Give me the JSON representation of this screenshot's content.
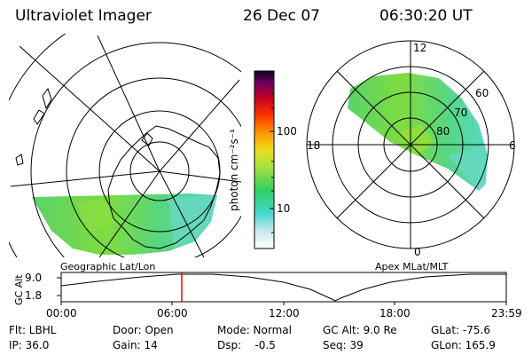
{
  "header": {
    "instrument": "Ultraviolet Imager",
    "date": "26 Dec 07",
    "time": "06:30:20 UT"
  },
  "geo_map": {
    "label": "Geographic Lat/Lon"
  },
  "apex_map": {
    "label": "Apex MLat/MLT",
    "mlt_labels": {
      "top": "12",
      "left": "18",
      "right": "6",
      "bottom": "0"
    },
    "lat_labels": [
      "60",
      "70",
      "80"
    ]
  },
  "colorbar": {
    "unit_label": "photon cm⁻²s⁻¹",
    "ticks": [
      "100",
      "10"
    ],
    "colors": [
      "#ffffff",
      "#c8e8ec",
      "#40d8d0",
      "#30d060",
      "#a0e040",
      "#e8e020",
      "#ff9900",
      "#ff3300",
      "#c00020",
      "#700060",
      "#100020"
    ]
  },
  "timeline": {
    "y_label": "GC Alt",
    "y_ticks": [
      "9.0",
      "1.8"
    ],
    "x_ticks": [
      "00:00",
      "06:00",
      "12:00",
      "18:00",
      "23:59"
    ],
    "marker_time_hours": 6.5,
    "marker_color": "#ff0000"
  },
  "status": {
    "filter": "Flt: LBHL",
    "ip": "IP: 36.0",
    "door": "Door: Open",
    "gain": "Gain: 14",
    "mode": "Mode: Normal",
    "dsp": "Dsp:    -0.5",
    "gc_alt": "GC Alt: 9.0 Re",
    "seq": "Seq: 39",
    "glat": "GLat: -75.6",
    "glon": "GLon: 165.9"
  }
}
